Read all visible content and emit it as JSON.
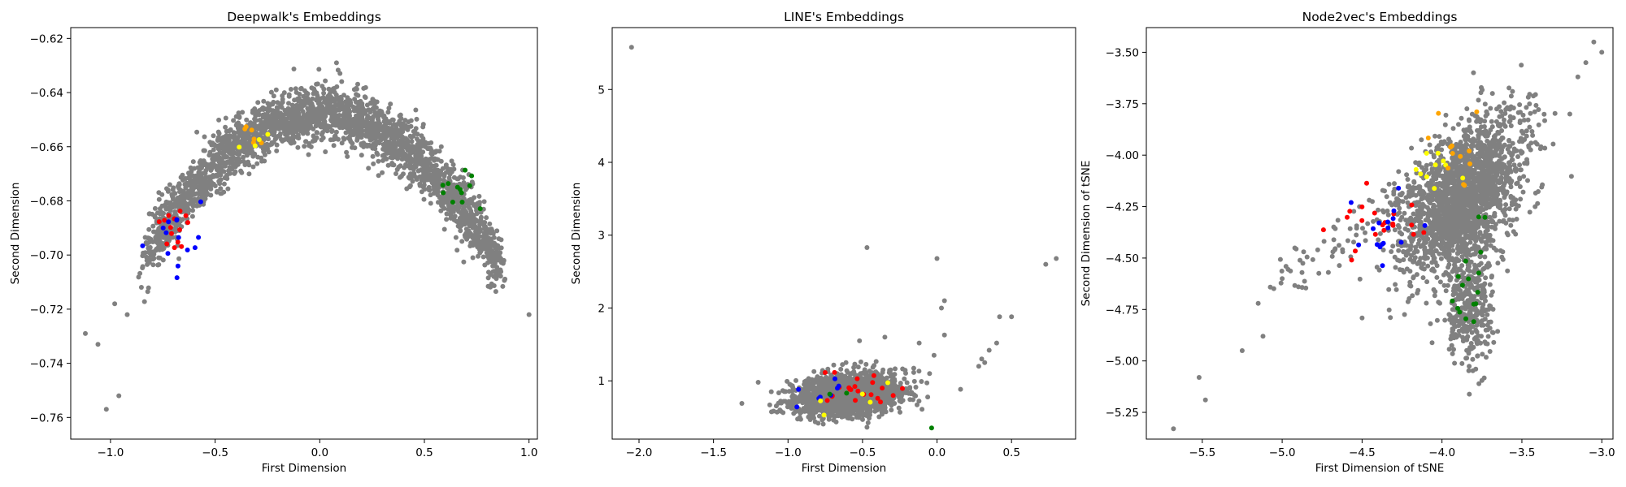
{
  "colors": {
    "background_points": "#808080",
    "red": "#ff0000",
    "blue": "#0000ff",
    "green": "#008000",
    "yellow": "#ffff00",
    "orange": "#ffa500"
  },
  "chart_data": [
    {
      "type": "scatter",
      "title": "Deepwalk's Embeddings",
      "xlabel": "First Dimension",
      "ylabel": "Second Dimension",
      "xlim": [
        -1.19,
        1.04
      ],
      "ylim": [
        -0.768,
        -0.616
      ],
      "xticks": [
        -1.0,
        -0.5,
        0.0,
        0.5,
        1.0
      ],
      "xtick_labels": [
        "−1.0",
        "−0.5",
        "0.0",
        "0.5",
        "1.0"
      ],
      "yticks": [
        -0.76,
        -0.74,
        -0.72,
        -0.7,
        -0.68,
        -0.66,
        -0.64,
        -0.62
      ],
      "ytick_labels": [
        "−0.76",
        "−0.74",
        "−0.72",
        "−0.70",
        "−0.68",
        "−0.66",
        "−0.64",
        "−0.62"
      ],
      "grid": false,
      "outliers": [
        [
          1.0,
          -0.722
        ],
        [
          -1.12,
          -0.729
        ],
        [
          -1.06,
          -0.733
        ],
        [
          -1.02,
          -0.757
        ],
        [
          -0.96,
          -0.752
        ],
        [
          0.08,
          -0.629
        ],
        [
          -0.98,
          -0.718
        ],
        [
          -0.92,
          -0.722
        ],
        [
          0.88,
          -0.702
        ]
      ],
      "clusters": [
        {
          "kind": "arc",
          "xmin": -0.82,
          "xmax": 0.86,
          "peak_x": 0.0,
          "peak_y": -0.648,
          "curvature": 0.075,
          "spread": 0.0055,
          "n": 2600,
          "color": "#808080"
        },
        {
          "kind": "blob",
          "cx": -0.68,
          "cy": -0.69,
          "sx": 0.05,
          "sy": 0.006,
          "n": 14,
          "color": "#ff0000"
        },
        {
          "kind": "blob",
          "cx": -0.7,
          "cy": -0.694,
          "sx": 0.06,
          "sy": 0.008,
          "n": 14,
          "color": "#0000ff"
        },
        {
          "kind": "blob",
          "cx": 0.6,
          "cy": -0.676,
          "sx": 0.08,
          "sy": 0.006,
          "n": 12,
          "color": "#008000"
        },
        {
          "kind": "blob",
          "cx": -0.3,
          "cy": -0.658,
          "sx": 0.04,
          "sy": 0.003,
          "n": 6,
          "color": "#ffa500"
        },
        {
          "kind": "blob",
          "cx": -0.32,
          "cy": -0.659,
          "sx": 0.04,
          "sy": 0.003,
          "n": 4,
          "color": "#ffff00"
        }
      ]
    },
    {
      "type": "scatter",
      "title": "LINE's Embeddings",
      "xlabel": "First Dimension",
      "ylabel": "Second Dimension",
      "xlim": [
        -2.18,
        0.93
      ],
      "ylim": [
        0.2,
        5.85
      ],
      "xticks": [
        -2.0,
        -1.5,
        -1.0,
        -0.5,
        0.0,
        0.5
      ],
      "xtick_labels": [
        "−2.0",
        "−1.5",
        "−1.0",
        "−0.5",
        "0.0",
        "0.5"
      ],
      "yticks": [
        1,
        2,
        3,
        4,
        5
      ],
      "ytick_labels": [
        "1",
        "2",
        "3",
        "4",
        "5"
      ],
      "grid": false,
      "outliers": [
        [
          -2.05,
          5.58
        ],
        [
          -0.47,
          2.83
        ],
        [
          -1.2,
          0.98
        ],
        [
          0.0,
          2.68
        ],
        [
          0.05,
          2.1
        ],
        [
          0.03,
          2.0
        ],
        [
          0.42,
          1.88
        ],
        [
          0.5,
          1.88
        ],
        [
          0.4,
          1.52
        ],
        [
          0.35,
          1.42
        ],
        [
          0.3,
          1.3
        ],
        [
          0.32,
          1.25
        ],
        [
          0.73,
          2.6
        ],
        [
          0.8,
          2.68
        ],
        [
          0.05,
          1.63
        ],
        [
          -0.05,
          1.1
        ],
        [
          -0.52,
          1.55
        ],
        [
          -0.35,
          1.6
        ],
        [
          -0.12,
          1.52
        ],
        [
          0.28,
          1.2
        ],
        [
          -0.02,
          1.35
        ]
      ],
      "clusters": [
        {
          "kind": "ellipse",
          "cx": -0.6,
          "cy": 0.8,
          "sx": 0.17,
          "sy": 0.13,
          "tilt": 0.35,
          "n": 2200,
          "color": "#808080"
        },
        {
          "kind": "blob",
          "cx": -0.55,
          "cy": 0.85,
          "sx": 0.18,
          "sy": 0.15,
          "n": 22,
          "color": "#ff0000"
        },
        {
          "kind": "blob",
          "cx": -0.7,
          "cy": 0.78,
          "sx": 0.15,
          "sy": 0.15,
          "n": 8,
          "color": "#0000ff"
        },
        {
          "kind": "blob",
          "cx": -0.65,
          "cy": 0.7,
          "sx": 0.2,
          "sy": 0.2,
          "n": 5,
          "color": "#ffff00"
        },
        {
          "kind": "blob",
          "cx": -0.6,
          "cy": 0.75,
          "sx": 0.2,
          "sy": 0.2,
          "n": 3,
          "color": "#008000"
        }
      ]
    },
    {
      "type": "scatter",
      "title": "Node2vec's Embeddings",
      "xlabel": "First Dimension of tSNE",
      "ylabel": "Second Dimension of tSNE",
      "xlim": [
        -5.85,
        -2.93
      ],
      "ylim": [
        -5.38,
        -3.38
      ],
      "xticks": [
        -5.5,
        -5.0,
        -4.5,
        -4.0,
        -3.5,
        -3.0
      ],
      "xtick_labels": [
        "−5.5",
        "−5.0",
        "−4.5",
        "−4.0",
        "−3.5",
        "−3.0"
      ],
      "yticks": [
        -5.25,
        -5.0,
        -4.75,
        -4.5,
        -4.25,
        -4.0,
        -3.75,
        -3.5
      ],
      "ytick_labels": [
        "−5.25",
        "−5.00",
        "−4.75",
        "−4.50",
        "−4.25",
        "−4.00",
        "−3.75",
        "−3.50"
      ],
      "grid": false,
      "outliers": [
        [
          -5.68,
          -5.33
        ],
        [
          -5.52,
          -5.08
        ],
        [
          -5.48,
          -5.19
        ],
        [
          -5.25,
          -4.95
        ],
        [
          -5.12,
          -4.88
        ],
        [
          -5.15,
          -4.72
        ],
        [
          -5.0,
          -4.6
        ],
        [
          -3.05,
          -3.45
        ],
        [
          -3.0,
          -3.5
        ],
        [
          -3.15,
          -3.62
        ],
        [
          -3.1,
          -3.55
        ],
        [
          -3.2,
          -3.8
        ]
      ],
      "clusters": [
        {
          "kind": "ellipse",
          "cx": -3.88,
          "cy": -4.22,
          "sx": 0.22,
          "sy": 0.13,
          "tilt": 0.75,
          "n": 1900,
          "color": "#808080"
        },
        {
          "kind": "ellipse",
          "cx": -3.83,
          "cy": -4.72,
          "sx": 0.08,
          "sy": 0.15,
          "tilt": 0.0,
          "n": 350,
          "color": "#808080"
        },
        {
          "kind": "line",
          "x0": -5.0,
          "y0": -4.62,
          "x1": -3.4,
          "y1": -3.7,
          "spread": 0.06,
          "n": 160,
          "color": "#808080"
        },
        {
          "kind": "blob",
          "cx": -4.45,
          "cy": -4.32,
          "sx": 0.2,
          "sy": 0.1,
          "n": 20,
          "color": "#ff0000"
        },
        {
          "kind": "blob",
          "cx": -4.35,
          "cy": -4.38,
          "sx": 0.1,
          "sy": 0.08,
          "n": 16,
          "color": "#0000ff"
        },
        {
          "kind": "blob",
          "cx": -3.82,
          "cy": -4.62,
          "sx": 0.06,
          "sy": 0.12,
          "n": 16,
          "color": "#008000"
        },
        {
          "kind": "blob",
          "cx": -4.05,
          "cy": -4.05,
          "sx": 0.1,
          "sy": 0.08,
          "n": 10,
          "color": "#ffff00"
        },
        {
          "kind": "blob",
          "cx": -3.92,
          "cy": -4.0,
          "sx": 0.1,
          "sy": 0.1,
          "n": 12,
          "color": "#ffa500"
        }
      ]
    }
  ]
}
